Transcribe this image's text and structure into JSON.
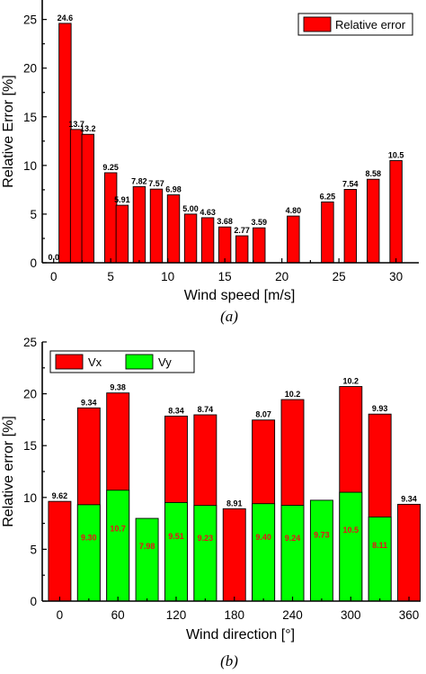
{
  "chart_data": [
    {
      "type": "bar",
      "caption": "(a)",
      "xlabel": "Wind speed [m/s]",
      "ylabel": "Relative Error [%]",
      "xlim": [
        -1,
        32
      ],
      "ylim": [
        0,
        27
      ],
      "xticks": [
        0,
        5,
        10,
        15,
        20,
        25,
        30
      ],
      "yticks": [
        0,
        5,
        10,
        15,
        20,
        25
      ],
      "legend": "top-right",
      "series": [
        {
          "name": "Relative error",
          "color": "#ff0000",
          "x": [
            0,
            1,
            2,
            3,
            5,
            6,
            7.5,
            9,
            10.5,
            12,
            13.5,
            15,
            16.5,
            18,
            21,
            24,
            26,
            28,
            30
          ],
          "values": [
            0.0,
            24.6,
            13.7,
            13.2,
            9.25,
            5.91,
            7.82,
            7.57,
            6.98,
            5.0,
            4.63,
            3.68,
            2.77,
            3.59,
            4.8,
            6.25,
            7.54,
            8.58,
            10.5
          ],
          "labels": [
            "0.0",
            "24.6",
            "13.7",
            "13.2",
            "9.25",
            "5.91",
            "7.82",
            "7.57",
            "6.98",
            "5.00",
            "4.63",
            "3.68",
            "2.77",
            "3.59",
            "4.80",
            "6.25",
            "7.54",
            "8.58",
            "10.5"
          ]
        }
      ]
    },
    {
      "type": "bar",
      "caption": "(b)",
      "xlabel": "Wind direction [°]",
      "ylabel": "Relative error [%]",
      "xlim": [
        -18,
        372
      ],
      "ylim": [
        0,
        25
      ],
      "xticks": [
        0,
        60,
        120,
        180,
        240,
        300,
        360
      ],
      "yticks": [
        0,
        5,
        10,
        15,
        20,
        25
      ],
      "legend": "top-left",
      "series": [
        {
          "name": "Vx",
          "color": "#ff0000",
          "x": [
            0,
            30,
            60,
            120,
            150,
            180,
            210,
            240,
            300,
            330,
            360
          ],
          "values": [
            9.62,
            18.64,
            20.08,
            17.85,
            17.97,
            8.91,
            17.47,
            19.44,
            20.7,
            18.04,
            9.34
          ],
          "labels": [
            "9.62",
            "9.34",
            "9.38",
            "8.34",
            "8.74",
            "8.91",
            "8.07",
            "10.2",
            "10.2",
            "9.93",
            "9.34"
          ]
        },
        {
          "name": "Vy",
          "color": "#00ff00",
          "x": [
            30,
            60,
            90,
            120,
            150,
            210,
            240,
            270,
            300,
            330
          ],
          "values": [
            9.3,
            10.7,
            7.98,
            9.51,
            9.23,
            9.4,
            9.24,
            9.73,
            10.5,
            8.11
          ],
          "labels": [
            "9.30",
            "10.7",
            "7.98",
            "9.51",
            "9.23",
            "9.40",
            "9.24",
            "9.73",
            "10.5",
            "8.11"
          ]
        }
      ]
    }
  ]
}
